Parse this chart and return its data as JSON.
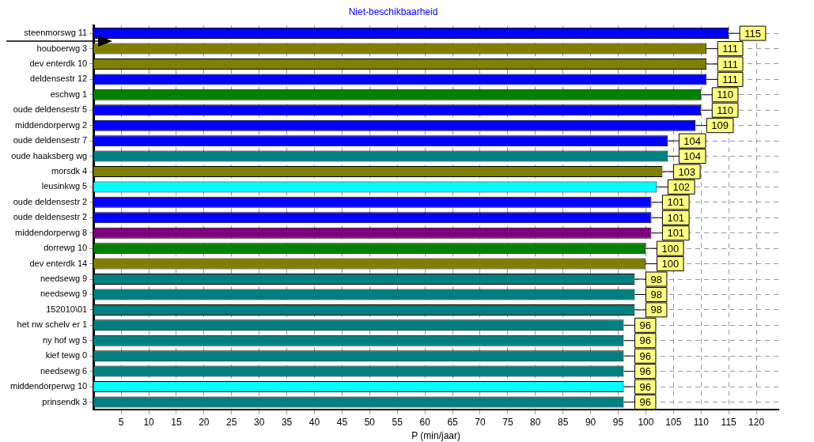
{
  "chart_data": {
    "type": "bar",
    "orientation": "horizontal",
    "title": "Niet-beschikbaarheid",
    "xlabel": "P (min/jaar)",
    "categories": [
      "steenmorswg 11",
      "houboerwg 3",
      "dev enterdk 10",
      "deldensestr 12",
      "eschwg 1",
      "oude deldensestr 5",
      "middendorperwg 2",
      "oude deldensestr 7",
      "oude haaksberg wg",
      "morsdk 4",
      "leusinkwg 5",
      "oude deldensestr 2",
      "oude deldensestr 2",
      "middendorperwg 8",
      "dorrewg 10",
      "dev enterdk 14",
      "needsewg 9",
      "needsewg 9",
      "152010\\01",
      "het nw schelv er 1",
      "ny hof wg 5",
      "kief tewg 0",
      "needsewg 6",
      "middendorperwg 10",
      "prinsendk 3"
    ],
    "values": [
      115,
      111,
      111,
      111,
      110,
      110,
      109,
      104,
      104,
      103,
      102,
      101,
      101,
      101,
      100,
      100,
      98,
      98,
      98,
      96,
      96,
      96,
      96,
      96,
      96
    ],
    "colors": [
      "#0000ff",
      "#808000",
      "#808000",
      "#0000ff",
      "#008000",
      "#0000ff",
      "#0000ff",
      "#0000ff",
      "#008080",
      "#808000",
      "#00ffff",
      "#0000ff",
      "#0000ff",
      "#800080",
      "#008000",
      "#808000",
      "#008080",
      "#008080",
      "#008080",
      "#008080",
      "#008080",
      "#008080",
      "#008080",
      "#00ffff",
      "#008080"
    ],
    "xlim": [
      0,
      124
    ],
    "xticks": [
      5,
      10,
      15,
      20,
      25,
      30,
      35,
      40,
      45,
      50,
      55,
      60,
      65,
      70,
      75,
      80,
      85,
      90,
      95,
      100,
      105,
      110,
      115,
      120
    ],
    "data_labels": true,
    "grid": true,
    "legend": false
  }
}
